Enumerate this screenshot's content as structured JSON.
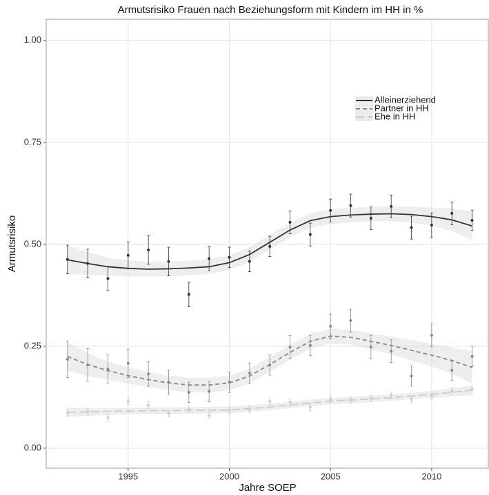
{
  "chart_data": {
    "type": "smooth-scatter",
    "title": "Armutsrisiko Frauen nach Beziehungsform mit Kindern im HH in %",
    "x_label": "Jahre SOEP",
    "y_label": "Armutsrisiko",
    "x": [
      1992,
      1993,
      1994,
      1995,
      1996,
      1997,
      1998,
      1999,
      2000,
      2001,
      2002,
      2003,
      2004,
      2005,
      2006,
      2007,
      2008,
      2009,
      2010,
      2011,
      2012
    ],
    "xlim": [
      1990.95,
      2012.8
    ],
    "xticks": [
      1995,
      2000,
      2005,
      2010
    ],
    "ylim": [
      -0.049,
      1.052
    ],
    "yticks": [
      {
        "value": 0,
        "label": "0.00"
      },
      {
        "value": 0.25,
        "label": "0.25"
      },
      {
        "value": 0.5,
        "label": "0.50"
      },
      {
        "value": 0.75,
        "label": "0.75"
      },
      {
        "value": 1,
        "label": "1.00"
      }
    ],
    "grid": true,
    "series": [
      {
        "name": "Alleinerziehend",
        "color": "#333333",
        "dash": "solid",
        "values": [
          0.463,
          0.453,
          0.416,
          0.473,
          0.486,
          0.458,
          0.377,
          0.465,
          0.468,
          0.458,
          0.495,
          0.554,
          0.524,
          0.583,
          0.595,
          0.564,
          0.593,
          0.541,
          0.547,
          0.576,
          0.559
        ],
        "errors": [
          0.035,
          0.035,
          0.03,
          0.033,
          0.035,
          0.035,
          0.03,
          0.03,
          0.025,
          0.025,
          0.025,
          0.028,
          0.028,
          0.028,
          0.028,
          0.028,
          0.028,
          0.028,
          0.03,
          0.028,
          0.025
        ],
        "smooth": [
          0.462,
          0.453,
          0.445,
          0.441,
          0.439,
          0.44,
          0.442,
          0.445,
          0.455,
          0.475,
          0.505,
          0.535,
          0.558,
          0.568,
          0.572,
          0.574,
          0.575,
          0.573,
          0.568,
          0.56,
          0.545
        ],
        "smooth_se": [
          0.035,
          0.028,
          0.022,
          0.02,
          0.018,
          0.018,
          0.018,
          0.018,
          0.018,
          0.018,
          0.018,
          0.018,
          0.018,
          0.018,
          0.018,
          0.018,
          0.018,
          0.02,
          0.022,
          0.028,
          0.035
        ]
      },
      {
        "name": "Partner in HH",
        "color": "#888888",
        "dash": "dashed",
        "values": [
          0.218,
          0.204,
          0.194,
          0.208,
          0.182,
          0.162,
          0.137,
          0.139,
          0.162,
          0.184,
          0.204,
          0.248,
          0.252,
          0.299,
          0.313,
          0.248,
          0.238,
          0.177,
          0.277,
          0.191,
          0.225
        ],
        "errors": [
          0.045,
          0.04,
          0.035,
          0.035,
          0.03,
          0.03,
          0.025,
          0.025,
          0.025,
          0.025,
          0.025,
          0.028,
          0.025,
          0.03,
          0.028,
          0.028,
          0.028,
          0.025,
          0.028,
          0.025,
          0.025
        ],
        "smooth": [
          0.225,
          0.205,
          0.19,
          0.178,
          0.168,
          0.16,
          0.155,
          0.155,
          0.16,
          0.177,
          0.205,
          0.235,
          0.262,
          0.275,
          0.272,
          0.262,
          0.252,
          0.24,
          0.228,
          0.215,
          0.198
        ],
        "smooth_se": [
          0.035,
          0.028,
          0.022,
          0.02,
          0.018,
          0.018,
          0.018,
          0.018,
          0.018,
          0.018,
          0.018,
          0.018,
          0.018,
          0.018,
          0.018,
          0.02,
          0.022,
          0.025,
          0.028,
          0.032,
          0.04
        ]
      },
      {
        "name": "Ehe in HH",
        "color": "#cccccc",
        "dash": "longdash",
        "values": [
          0.087,
          0.09,
          0.075,
          0.115,
          0.105,
          0.085,
          0.095,
          0.08,
          0.093,
          0.095,
          0.115,
          0.112,
          0.1,
          0.12,
          0.118,
          0.122,
          0.13,
          0.12,
          0.128,
          0.14,
          0.145
        ],
        "errors": [
          0.008,
          0.008,
          0.008,
          0.008,
          0.008,
          0.008,
          0.008,
          0.008,
          0.008,
          0.008,
          0.008,
          0.008,
          0.008,
          0.008,
          0.008,
          0.008,
          0.008,
          0.008,
          0.008,
          0.008,
          0.008
        ],
        "smooth": [
          0.088,
          0.089,
          0.09,
          0.091,
          0.092,
          0.092,
          0.093,
          0.093,
          0.094,
          0.097,
          0.101,
          0.106,
          0.111,
          0.115,
          0.118,
          0.121,
          0.124,
          0.128,
          0.132,
          0.137,
          0.142
        ],
        "smooth_se": [
          0.012,
          0.01,
          0.009,
          0.008,
          0.008,
          0.008,
          0.008,
          0.008,
          0.008,
          0.008,
          0.008,
          0.008,
          0.008,
          0.008,
          0.008,
          0.008,
          0.008,
          0.008,
          0.009,
          0.01,
          0.012
        ]
      }
    ]
  }
}
